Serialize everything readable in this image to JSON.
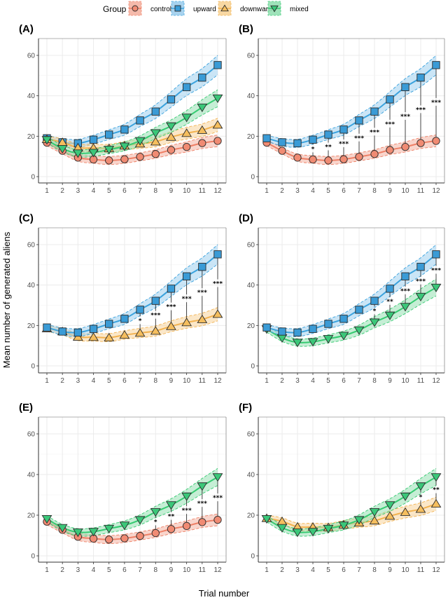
{
  "chart_data": {
    "type": "line",
    "figure_title": "",
    "xlabel": "Trial number",
    "ylabel": "Mean number of generated aliens",
    "x": [
      1,
      2,
      3,
      4,
      5,
      6,
      7,
      8,
      9,
      10,
      11,
      12
    ],
    "x_tick_labels": [
      "1",
      "2",
      "3",
      "4",
      "5",
      "6",
      "7",
      "8",
      "9",
      "10",
      "11",
      "12"
    ],
    "ylim": [
      -2,
      66
    ],
    "y_ticks": [
      0,
      20,
      40,
      60
    ],
    "y_tick_labels": [
      "0",
      "20",
      "40",
      "60"
    ],
    "grid": true,
    "legend": {
      "title": "Group",
      "placement": "top",
      "entries": [
        {
          "name": "control",
          "marker": "circle",
          "color": "#E8806A",
          "fill": "#F08B73"
        },
        {
          "name": "upward",
          "marker": "square",
          "color": "#2E9AD6",
          "fill": "#3A9BD6"
        },
        {
          "name": "downward",
          "marker": "triangle-up",
          "color": "#F2B04A",
          "fill": "#F5BE5E"
        },
        {
          "name": "mixed",
          "marker": "triangle-down",
          "color": "#2EC46A",
          "fill": "#3BC779"
        }
      ]
    },
    "series": [
      {
        "name": "control",
        "values": [
          16.8,
          12.8,
          9.4,
          8.5,
          8.0,
          8.6,
          9.8,
          11.2,
          13.2,
          14.7,
          16.6,
          17.7
        ],
        "ci_halfwidth": [
          1.5,
          1.5,
          1.8,
          1.9,
          2.0,
          2.0,
          2.0,
          2.1,
          2.3,
          2.5,
          2.7,
          2.9
        ]
      },
      {
        "name": "upward",
        "values": [
          19.0,
          17.0,
          16.5,
          18.3,
          20.8,
          23.3,
          27.8,
          32.2,
          38.2,
          44.3,
          49.0,
          55.2
        ],
        "ci_halfwidth": [
          1.5,
          1.8,
          2.0,
          2.2,
          2.4,
          2.7,
          3.0,
          3.4,
          3.8,
          4.2,
          4.5,
          4.8
        ]
      },
      {
        "name": "downward",
        "values": [
          18.5,
          17.0,
          14.3,
          14.2,
          14.0,
          15.3,
          16.3,
          17.3,
          19.6,
          21.5,
          23.0,
          25.6
        ],
        "ci_halfwidth": [
          1.5,
          1.7,
          1.8,
          1.9,
          2.0,
          2.1,
          2.3,
          2.5,
          2.7,
          2.9,
          3.1,
          3.3
        ]
      },
      {
        "name": "mixed",
        "values": [
          18.2,
          13.8,
          11.6,
          11.9,
          13.4,
          15.0,
          17.7,
          21.6,
          25.0,
          29.3,
          34.3,
          38.8
        ],
        "ci_halfwidth": [
          1.5,
          1.7,
          1.8,
          1.9,
          2.0,
          2.2,
          2.5,
          2.8,
          3.1,
          3.4,
          3.8,
          4.2
        ]
      }
    ],
    "panels": [
      {
        "label": "(A)",
        "groups": [
          "control",
          "upward",
          "downward",
          "mixed"
        ],
        "comparisons": []
      },
      {
        "label": "(B)",
        "groups": [
          "control",
          "upward"
        ],
        "comparisons": [
          {
            "trial": 4,
            "sig": "*"
          },
          {
            "trial": 5,
            "sig": "**"
          },
          {
            "trial": 6,
            "sig": "***"
          },
          {
            "trial": 7,
            "sig": "***"
          },
          {
            "trial": 8,
            "sig": "***"
          },
          {
            "trial": 9,
            "sig": "***"
          },
          {
            "trial": 10,
            "sig": "***"
          },
          {
            "trial": 11,
            "sig": "***"
          },
          {
            "trial": 12,
            "sig": "***"
          }
        ]
      },
      {
        "label": "(C)",
        "groups": [
          "downward",
          "upward"
        ],
        "comparisons": [
          {
            "trial": 7,
            "sig": "*"
          },
          {
            "trial": 8,
            "sig": "***"
          },
          {
            "trial": 9,
            "sig": "***"
          },
          {
            "trial": 10,
            "sig": "***"
          },
          {
            "trial": 11,
            "sig": "***"
          },
          {
            "trial": 12,
            "sig": "***"
          }
        ]
      },
      {
        "label": "(D)",
        "groups": [
          "mixed",
          "upward"
        ],
        "comparisons": [
          {
            "trial": 8,
            "sig": "*"
          },
          {
            "trial": 9,
            "sig": "**"
          },
          {
            "trial": 10,
            "sig": "***"
          },
          {
            "trial": 11,
            "sig": "***"
          },
          {
            "trial": 12,
            "sig": "***"
          }
        ]
      },
      {
        "label": "(E)",
        "groups": [
          "control",
          "mixed"
        ],
        "comparisons": [
          {
            "trial": 8,
            "sig": "*"
          },
          {
            "trial": 9,
            "sig": "**"
          },
          {
            "trial": 10,
            "sig": "***"
          },
          {
            "trial": 11,
            "sig": "***"
          },
          {
            "trial": 12,
            "sig": "***"
          }
        ]
      },
      {
        "label": "(F)",
        "groups": [
          "downward",
          "mixed"
        ],
        "comparisons": [
          {
            "trial": 11,
            "sig": "*"
          },
          {
            "trial": 12,
            "sig": "**"
          }
        ]
      }
    ]
  }
}
